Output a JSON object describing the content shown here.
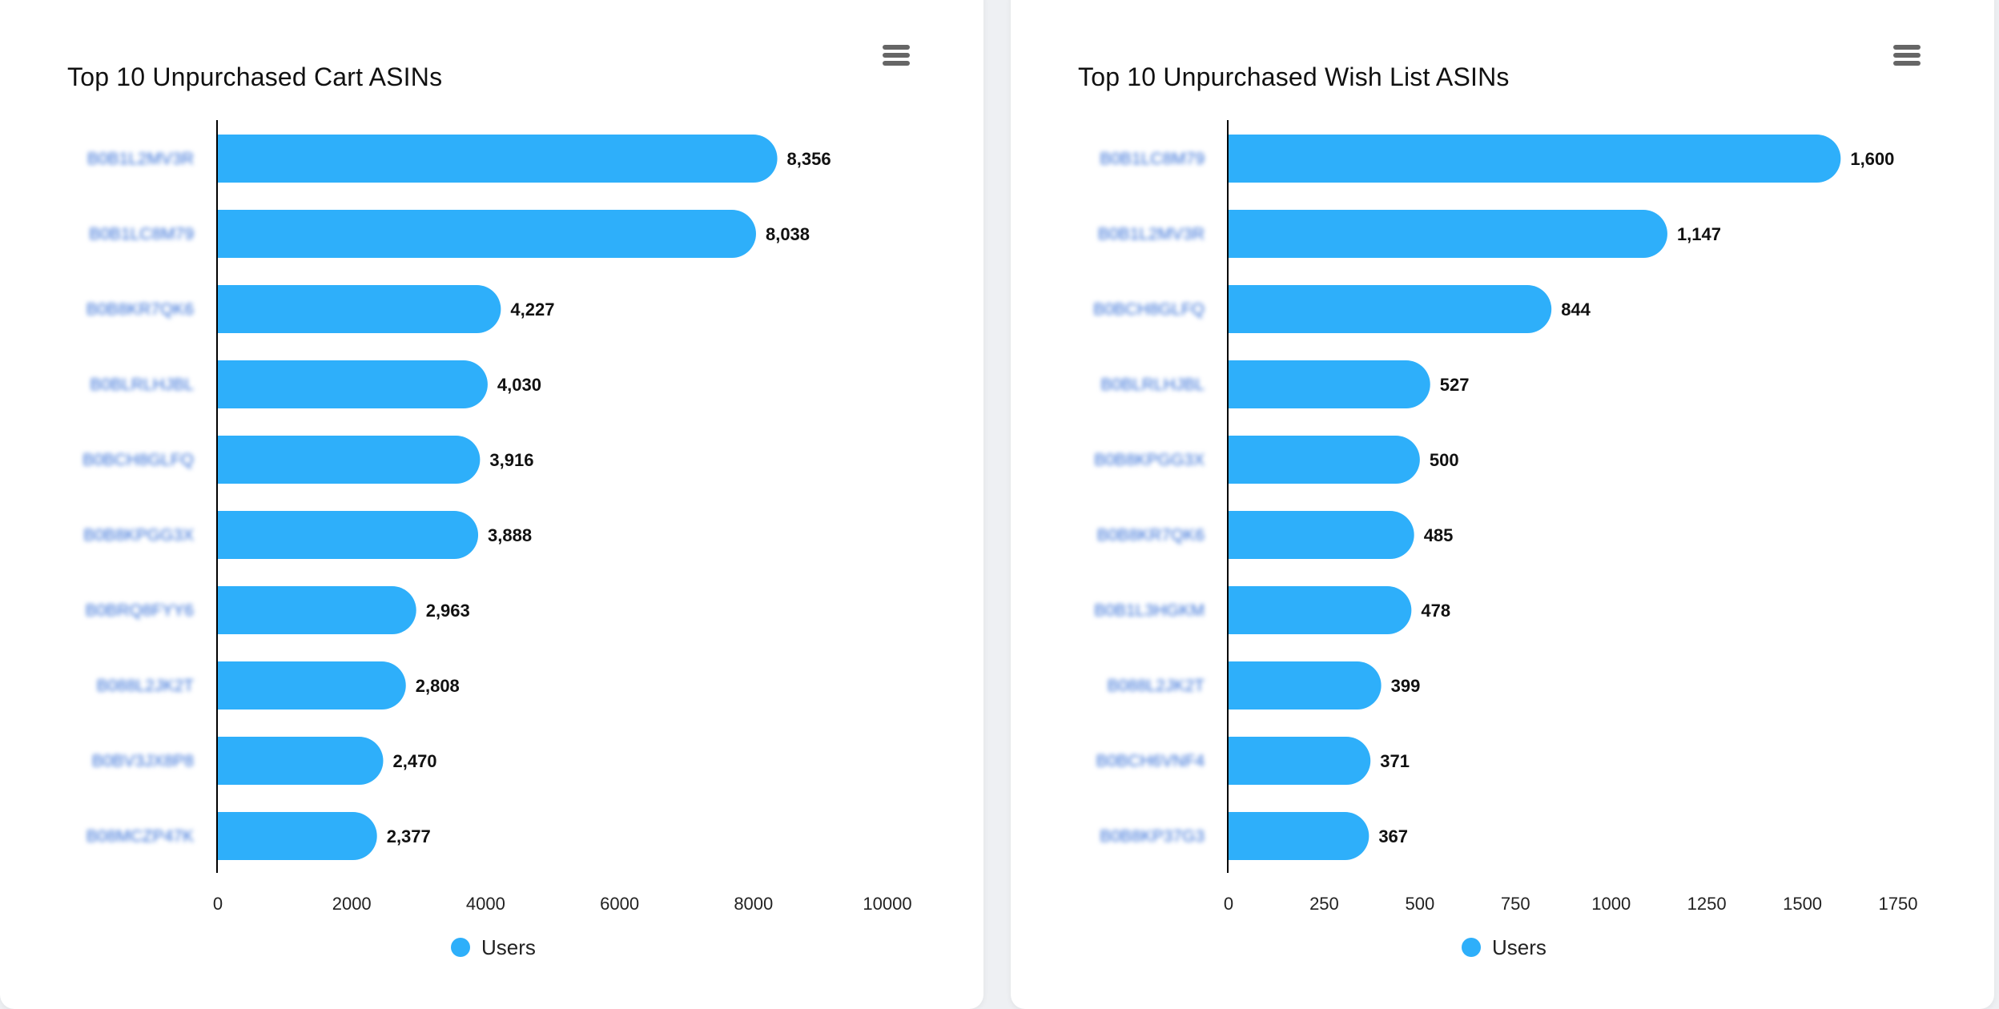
{
  "chart_data": [
    {
      "type": "bar",
      "orientation": "horizontal",
      "title": "Top 10 Unpurchased Cart ASINs",
      "categories": [
        "B0B1L2MV3R",
        "B0B1LC8M79",
        "B0B8KR7QK6",
        "B0BLRLHJBL",
        "B0BCH8GLFQ",
        "B0B8KPGG3X",
        "B0BRQ8FYY6",
        "B088L2JK2T",
        "B0BV3JX8P8",
        "B08MCZP47K"
      ],
      "series": [
        {
          "name": "Users",
          "values": [
            8356,
            8038,
            4227,
            4030,
            3916,
            3888,
            2963,
            2808,
            2470,
            2377
          ]
        }
      ],
      "xlim": [
        0,
        10000
      ],
      "ticks": [
        0,
        2000,
        4000,
        6000,
        8000,
        10000
      ],
      "data_labels": [
        "8,356",
        "8,038",
        "4,227",
        "4,030",
        "3,916",
        "3,888",
        "2,963",
        "2,808",
        "2,470",
        "2,377"
      ],
      "color": "#2eaffa",
      "legend_position": "bottom-center",
      "grid": false
    },
    {
      "type": "bar",
      "orientation": "horizontal",
      "title": "Top 10 Unpurchased Wish List ASINs",
      "categories": [
        "B0B1LC8M79",
        "B0B1L2MV3R",
        "B0BCH8GLFQ",
        "B0BLRLHJBL",
        "B0B8KPGG3X",
        "B0B8KR7QK6",
        "B0B1L3HGKM",
        "B088L2JK2T",
        "B0BCH6VNF4",
        "B0B8KP37G3"
      ],
      "series": [
        {
          "name": "Users",
          "values": [
            1600,
            1147,
            844,
            527,
            500,
            485,
            478,
            399,
            371,
            367
          ]
        }
      ],
      "xlim": [
        0,
        1750
      ],
      "ticks": [
        0,
        250,
        500,
        750,
        1000,
        1250,
        1500,
        1750
      ],
      "data_labels": [
        "1,600",
        "1,147",
        "844",
        "527",
        "500",
        "485",
        "478",
        "399",
        "371",
        "367"
      ],
      "color": "#2eaffa",
      "legend_position": "bottom-center",
      "grid": false
    }
  ],
  "ui": {
    "menu_icon": "hamburger-menu-icon",
    "legend_icon": "circle-icon"
  }
}
